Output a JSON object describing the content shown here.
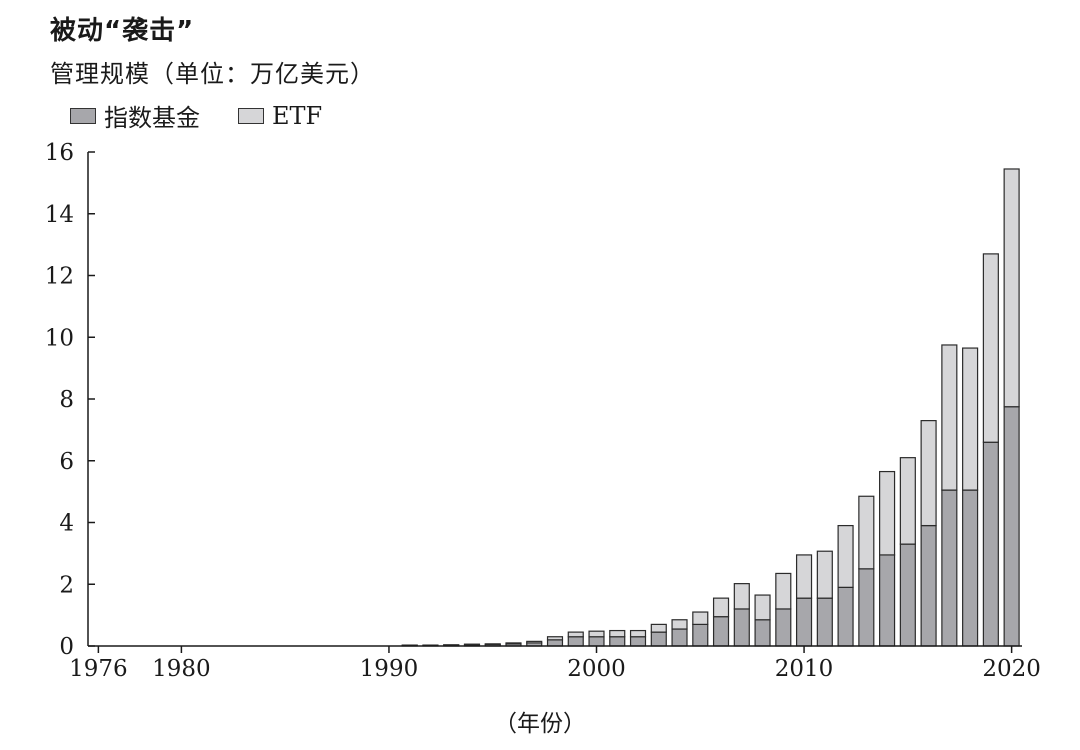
{
  "chart_data": {
    "type": "bar",
    "stacked": true,
    "title": "被动“袭击”",
    "subtitle": "管理规模（单位：万亿美元）",
    "xlabel": "（年份）",
    "ylabel": "",
    "ylim": [
      0,
      16
    ],
    "yticks": [
      0,
      2,
      4,
      6,
      8,
      10,
      12,
      14,
      16
    ],
    "xticks": [
      1976,
      1980,
      1990,
      2000,
      2010,
      2020
    ],
    "xlim": [
      1975.5,
      2020.5
    ],
    "legend_position": "top-left",
    "categories": [
      1976,
      1977,
      1978,
      1979,
      1980,
      1981,
      1982,
      1983,
      1984,
      1985,
      1986,
      1987,
      1988,
      1989,
      1990,
      1991,
      1992,
      1993,
      1994,
      1995,
      1996,
      1997,
      1998,
      1999,
      2000,
      2001,
      2002,
      2003,
      2004,
      2005,
      2006,
      2007,
      2008,
      2009,
      2010,
      2011,
      2012,
      2013,
      2014,
      2015,
      2016,
      2017,
      2018,
      2019,
      2020
    ],
    "series": [
      {
        "name": "指数基金",
        "color": "#a7a7ab",
        "values": [
          0,
          0,
          0,
          0,
          0,
          0,
          0,
          0,
          0,
          0,
          0,
          0,
          0,
          0,
          0,
          0.02,
          0.02,
          0.03,
          0.04,
          0.05,
          0.07,
          0.1,
          0.2,
          0.3,
          0.3,
          0.3,
          0.3,
          0.45,
          0.55,
          0.7,
          0.95,
          1.2,
          0.85,
          1.2,
          1.55,
          1.55,
          1.9,
          2.5,
          2.95,
          3.3,
          3.9,
          5.05,
          5.05,
          6.6,
          7.75
        ]
      },
      {
        "name": "ETF",
        "color": "#d6d6d8",
        "values": [
          0,
          0,
          0,
          0,
          0,
          0,
          0,
          0,
          0,
          0,
          0,
          0,
          0,
          0,
          0,
          0.01,
          0.01,
          0.01,
          0.02,
          0.02,
          0.03,
          0.05,
          0.1,
          0.15,
          0.18,
          0.2,
          0.2,
          0.25,
          0.3,
          0.4,
          0.6,
          0.82,
          0.8,
          1.15,
          1.4,
          1.52,
          2.0,
          2.35,
          2.7,
          2.8,
          3.4,
          4.7,
          4.6,
          6.1,
          7.7
        ]
      }
    ]
  }
}
